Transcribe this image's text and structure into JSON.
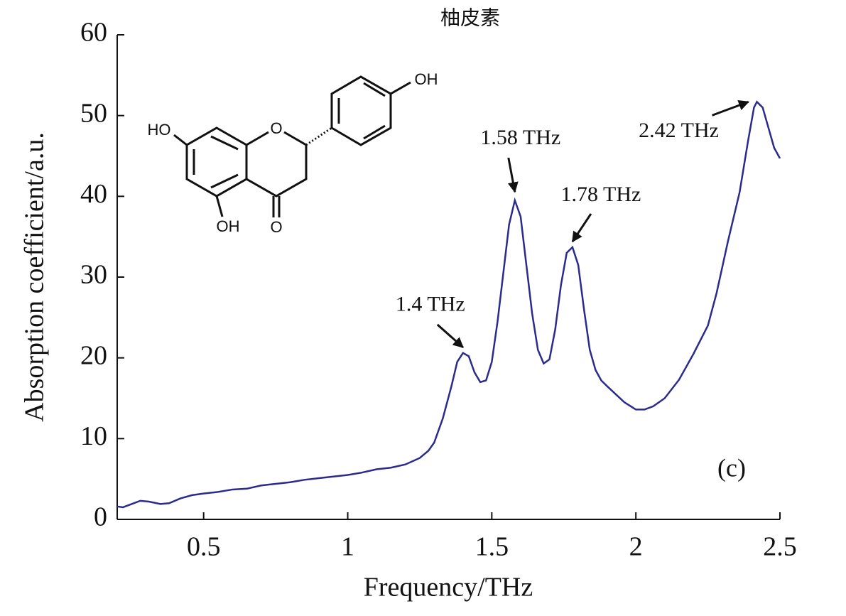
{
  "chart_data": {
    "type": "line",
    "title": "柚皮素",
    "x_label": "Frequency/THz",
    "y_label": "Absorption coefficient/a.u.",
    "panel_label": "(c)",
    "structure_labels": [
      "HO",
      "O",
      "OH",
      "OH",
      "O"
    ],
    "xlim": [
      0.2,
      2.5
    ],
    "xticks": [
      0.5,
      1,
      1.5,
      2,
      2.5
    ],
    "ylim": [
      0,
      60
    ],
    "yticks": [
      0,
      10,
      20,
      30,
      40,
      50,
      60
    ],
    "series": [
      {
        "color": "#2b2b8c",
        "x": [
          0.2,
          0.22,
          0.25,
          0.28,
          0.31,
          0.35,
          0.38,
          0.42,
          0.46,
          0.5,
          0.55,
          0.6,
          0.65,
          0.7,
          0.75,
          0.8,
          0.85,
          0.9,
          0.95,
          1.0,
          1.05,
          1.1,
          1.15,
          1.2,
          1.25,
          1.28,
          1.3,
          1.33,
          1.36,
          1.38,
          1.4,
          1.42,
          1.44,
          1.46,
          1.48,
          1.5,
          1.52,
          1.54,
          1.56,
          1.58,
          1.6,
          1.62,
          1.64,
          1.66,
          1.68,
          1.7,
          1.72,
          1.74,
          1.76,
          1.78,
          1.8,
          1.82,
          1.84,
          1.86,
          1.88,
          1.9,
          1.93,
          1.96,
          2.0,
          2.03,
          2.06,
          2.1,
          2.15,
          2.2,
          2.25,
          2.28,
          2.32,
          2.36,
          2.39,
          2.41,
          2.42,
          2.44,
          2.46,
          2.48,
          2.5
        ],
        "values": [
          1.6,
          1.5,
          1.9,
          2.3,
          2.2,
          1.9,
          2.0,
          2.6,
          3.0,
          3.2,
          3.4,
          3.7,
          3.8,
          4.2,
          4.4,
          4.6,
          4.9,
          5.1,
          5.3,
          5.5,
          5.8,
          6.2,
          6.4,
          6.8,
          7.6,
          8.5,
          9.5,
          12.5,
          16.5,
          19.5,
          20.6,
          20.2,
          18.2,
          17.0,
          17.2,
          19.5,
          24.5,
          30.5,
          36.5,
          39.5,
          37.5,
          31.5,
          25.5,
          21,
          19.3,
          19.8,
          23.5,
          29,
          33,
          33.7,
          31.5,
          26,
          21,
          18.5,
          17.2,
          16.5,
          15.5,
          14.5,
          13.6,
          13.6,
          14.0,
          15,
          17.3,
          20.5,
          24,
          28,
          34.5,
          40.5,
          47,
          51,
          51.7,
          51,
          48.5,
          46,
          44.7
        ]
      }
    ],
    "annotations": [
      {
        "text": "1.4 THz",
        "x": 1.4,
        "y": 20.6
      },
      {
        "text": "1.58 THz",
        "x": 1.58,
        "y": 39.5
      },
      {
        "text": "1.78 THz",
        "x": 1.78,
        "y": 33.7
      },
      {
        "text": "2.42 THz",
        "x": 2.42,
        "y": 51.7
      }
    ]
  }
}
